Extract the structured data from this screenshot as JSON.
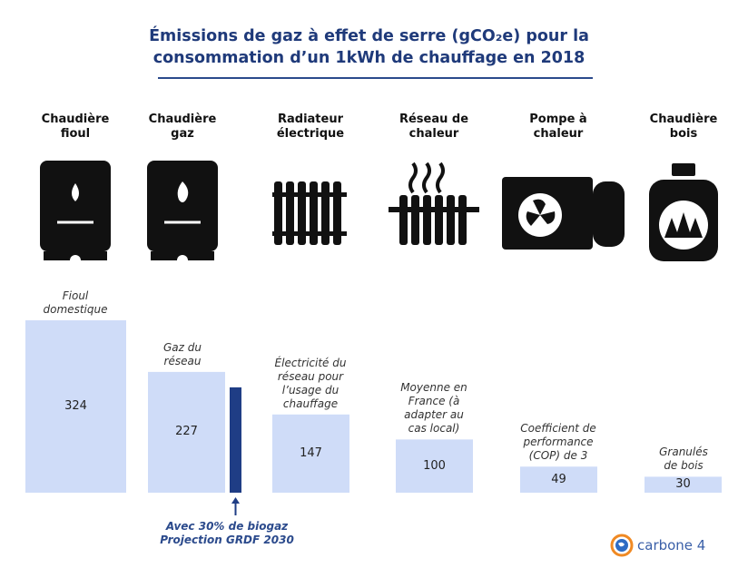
{
  "chart_data": {
    "type": "bar",
    "title_line1": "Émissions de gaz à effet de serre (gCO₂e) pour la",
    "title_line2": "consommation d’un 1kWh de chauffage en 2018",
    "categories": [
      "Chaudière fioul",
      "Chaudière gaz",
      "Radiateur électrique",
      "Réseau de chaleur",
      "Pompe à chaleur",
      "Chaudière bois"
    ],
    "category_lines": [
      [
        "Chaudière",
        "fioul"
      ],
      [
        "Chaudière",
        "gaz"
      ],
      [
        "Radiateur",
        "électrique"
      ],
      [
        "Réseau de",
        "chaleur"
      ],
      [
        "Pompe à",
        "chaleur"
      ],
      [
        "Chaudière",
        "bois"
      ]
    ],
    "values": [
      324,
      227,
      147,
      100,
      49,
      30
    ],
    "value_labels": [
      "324",
      "227",
      "147",
      "100",
      "49",
      "30"
    ],
    "bar_notes": [
      [
        "Fioul",
        "domestique"
      ],
      [
        "Gaz du",
        "réseau"
      ],
      [
        "Électricité du",
        "réseau pour",
        "l’usage du",
        "chauffage"
      ],
      [
        "Moyenne en",
        "France (à",
        "adapter au",
        "cas local)"
      ],
      [
        "Coefficient de",
        "performance",
        "(COP) de 3"
      ],
      [
        "Granulés",
        "de bois"
      ]
    ],
    "projection": {
      "value": 198,
      "note_line1": "Avec 30% de biogaz",
      "note_line2": "Projection GRDF 2030",
      "color": "#1f3d85"
    },
    "bar_color": "#cfdcf8",
    "ylim": [
      0,
      324
    ],
    "grid": false,
    "legend": "none"
  },
  "logo": {
    "text": "carbone 4"
  }
}
